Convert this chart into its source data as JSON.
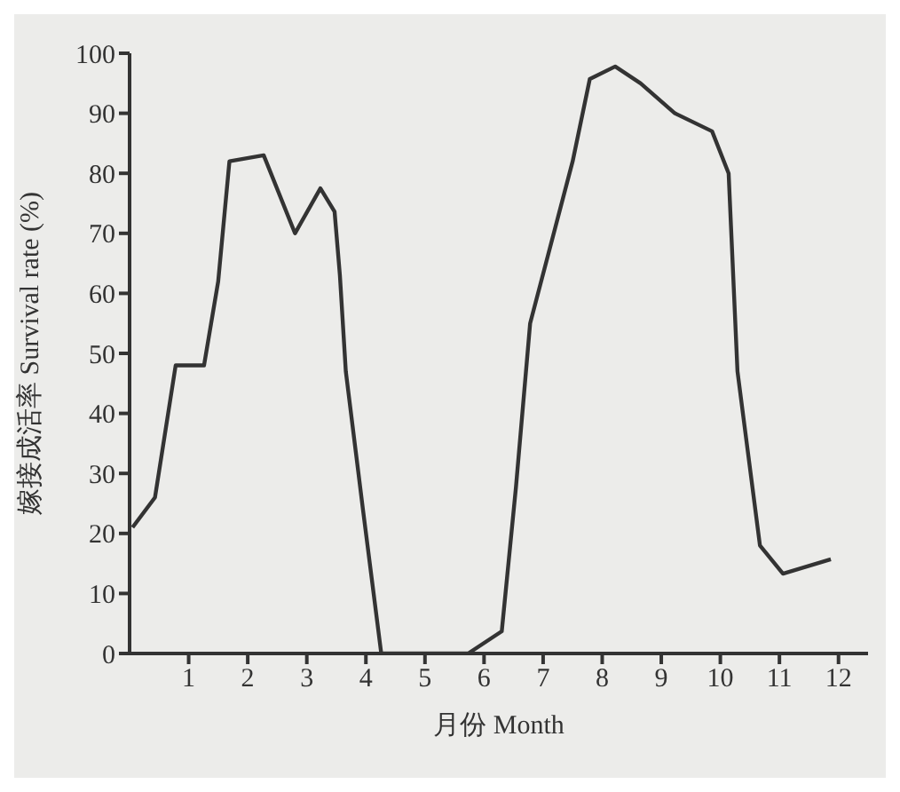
{
  "chart_data": {
    "type": "line",
    "xlabel": "月份  Month",
    "ylabel": "嫁接成活率    Survival rate (%)",
    "x": [
      0.05,
      0.43,
      0.78,
      1.26,
      1.5,
      1.69,
      2.27,
      2.8,
      3.23,
      3.47,
      3.56,
      3.66,
      3.95,
      4.26,
      5.73,
      6.3,
      6.54,
      6.78,
      7.5,
      7.79,
      8.22,
      8.65,
      9.23,
      9.86,
      10.14,
      10.29,
      10.67,
      11.06,
      11.87
    ],
    "series": [
      {
        "color": "#333333",
        "values": [
          21,
          26,
          48,
          48,
          62,
          82,
          83,
          70,
          77.5,
          73.6,
          63,
          47,
          24,
          0,
          0,
          3.7,
          27.7,
          55,
          82,
          95.7,
          97.8,
          95,
          90,
          87,
          80,
          47,
          18,
          13.3,
          15.7
        ]
      }
    ],
    "xlim": [
      0,
      12.5
    ],
    "xticks": [
      1,
      2,
      3,
      4,
      5,
      6,
      7,
      8,
      9,
      10,
      11,
      12
    ],
    "ylim": [
      0,
      100
    ],
    "yticks": [
      0,
      10,
      20,
      30,
      40,
      50,
      60,
      70,
      80,
      90,
      100
    ],
    "grid": false,
    "legend": false,
    "marker": "none",
    "line_style": "solid"
  }
}
